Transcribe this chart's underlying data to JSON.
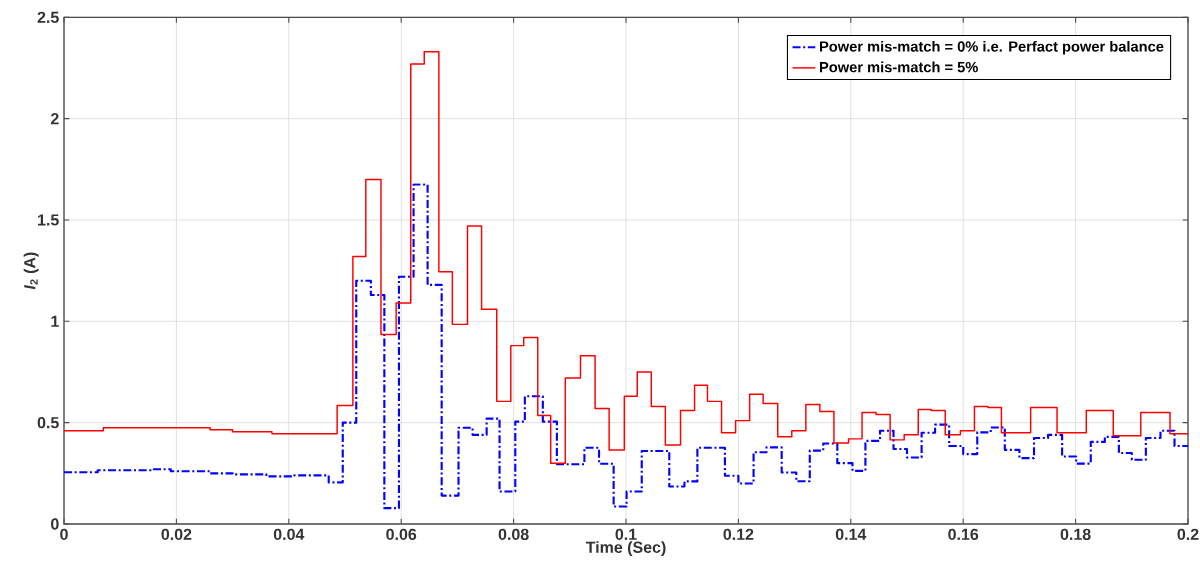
{
  "chart_data": {
    "type": "step",
    "xlabel": "Time (Sec)",
    "ylabel": "*I*$_{2}$ (A)",
    "xlim": [
      0,
      0.2
    ],
    "ylim": [
      0,
      2.5
    ],
    "xticks": [
      0,
      0.02,
      0.04,
      0.06,
      0.08,
      0.1,
      0.12,
      0.14,
      0.16,
      0.18,
      0.2
    ],
    "yticks": [
      0,
      0.5,
      1,
      1.5,
      2,
      2.5
    ],
    "grid": true,
    "legend": "top right",
    "series": [
      {
        "name": "Power mis-match = 0% i.e. Perfact power balance",
        "color": "#0000ff",
        "line_style": "dashed",
        "x": [
          0,
          0.006,
          0.016,
          0.019,
          0.026,
          0.03,
          0.036,
          0.041,
          0.0471,
          0.0496,
          0.052,
          0.0546,
          0.057,
          0.0596,
          0.0622,
          0.0647,
          0.0672,
          0.0702,
          0.0727,
          0.0752,
          0.0775,
          0.0803,
          0.082,
          0.0852,
          0.0877,
          0.0926,
          0.0952,
          0.0978,
          0.1001,
          0.1028,
          0.1077,
          0.1104,
          0.1127,
          0.1176,
          0.12,
          0.1227,
          0.125,
          0.1277,
          0.1303,
          0.1327,
          0.1351,
          0.1376,
          0.1403,
          0.1426,
          0.1452,
          0.1476,
          0.15,
          0.1526,
          0.155,
          0.1575,
          0.16,
          0.1625,
          0.1649,
          0.1674,
          0.17,
          0.1726,
          0.1751,
          0.1776,
          0.1801,
          0.1827,
          0.1852,
          0.1877,
          0.19,
          0.1925,
          0.1951,
          0.1976,
          0.2
        ],
        "values": [
          0.255,
          0.265,
          0.27,
          0.26,
          0.25,
          0.245,
          0.235,
          0.24,
          0.205,
          0.5,
          1.2,
          1.13,
          0.078,
          1.22,
          1.675,
          1.18,
          0.14,
          0.475,
          0.44,
          0.52,
          0.16,
          0.505,
          0.63,
          0.505,
          0.295,
          0.376,
          0.297,
          0.086,
          0.16,
          0.36,
          0.185,
          0.21,
          0.376,
          0.238,
          0.2,
          0.354,
          0.378,
          0.254,
          0.211,
          0.362,
          0.397,
          0.3,
          0.262,
          0.41,
          0.46,
          0.37,
          0.328,
          0.45,
          0.49,
          0.385,
          0.345,
          0.452,
          0.476,
          0.366,
          0.325,
          0.424,
          0.44,
          0.333,
          0.298,
          0.405,
          0.43,
          0.35,
          0.317,
          0.424,
          0.46,
          0.385,
          0.385
        ]
      },
      {
        "name": "Power mis-match = 5%",
        "color": "#ff0000",
        "line_style": "solid",
        "x": [
          0,
          0.007,
          0.026,
          0.03,
          0.037,
          0.0486,
          0.0514,
          0.0537,
          0.0564,
          0.0591,
          0.0617,
          0.0641,
          0.0667,
          0.0691,
          0.0718,
          0.0743,
          0.077,
          0.0795,
          0.0818,
          0.0843,
          0.0866,
          0.0892,
          0.0919,
          0.0945,
          0.097,
          0.0997,
          0.102,
          0.1045,
          0.107,
          0.1097,
          0.1122,
          0.1145,
          0.117,
          0.1195,
          0.122,
          0.1244,
          0.127,
          0.1295,
          0.132,
          0.1345,
          0.137,
          0.1396,
          0.142,
          0.1445,
          0.147,
          0.1495,
          0.152,
          0.1543,
          0.1568,
          0.1595,
          0.162,
          0.1644,
          0.1668,
          0.172,
          0.1767,
          0.1819,
          0.1867,
          0.1916,
          0.1968,
          0.2
        ],
        "values": [
          0.46,
          0.475,
          0.465,
          0.455,
          0.445,
          0.585,
          1.32,
          1.7,
          0.935,
          1.09,
          2.27,
          2.33,
          1.245,
          0.985,
          1.47,
          1.06,
          0.605,
          0.88,
          0.92,
          0.535,
          0.3,
          0.72,
          0.83,
          0.57,
          0.365,
          0.63,
          0.75,
          0.58,
          0.39,
          0.56,
          0.685,
          0.605,
          0.45,
          0.51,
          0.64,
          0.595,
          0.43,
          0.46,
          0.59,
          0.555,
          0.4,
          0.42,
          0.55,
          0.54,
          0.415,
          0.44,
          0.565,
          0.56,
          0.44,
          0.46,
          0.58,
          0.575,
          0.45,
          0.575,
          0.45,
          0.56,
          0.435,
          0.55,
          0.445,
          0.445
        ]
      }
    ]
  }
}
